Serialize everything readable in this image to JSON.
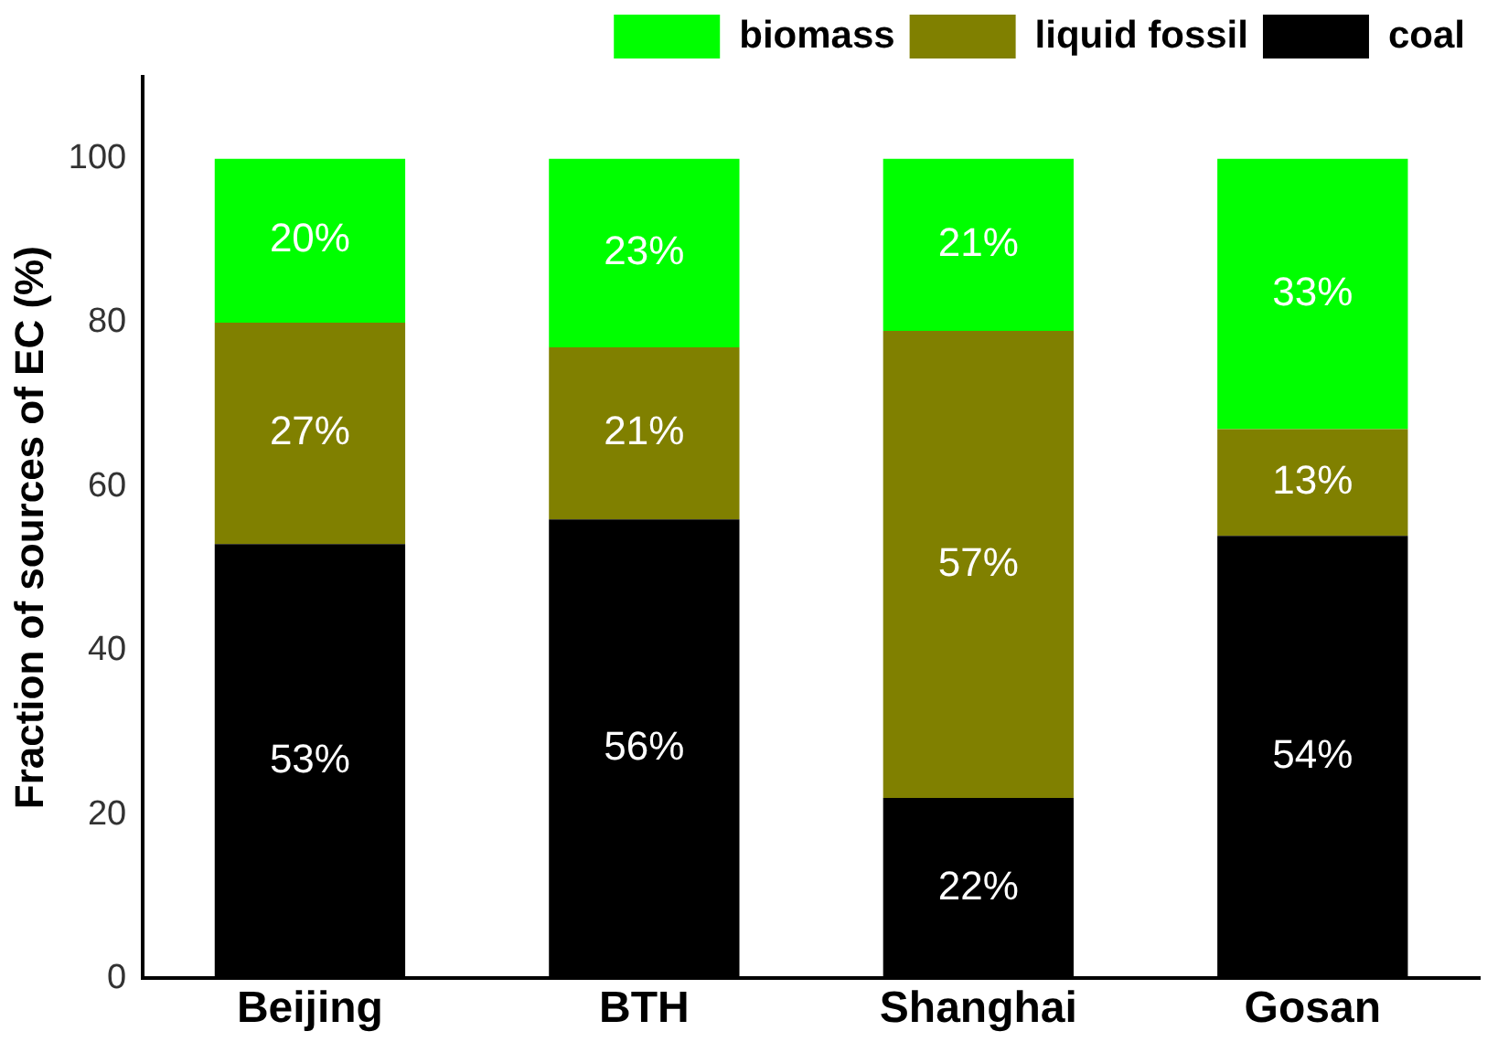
{
  "chart_data": {
    "type": "bar",
    "stacked": true,
    "ylabel": "Fraction of sources of EC (%)",
    "categories": [
      "Beijing",
      "BTH",
      "Shanghai",
      "Gosan"
    ],
    "series": [
      {
        "name": "coal",
        "color": "#000000",
        "values": [
          53,
          56,
          22,
          54
        ],
        "value_labels": [
          "53%",
          "56%",
          "22%",
          "54%"
        ]
      },
      {
        "name": "liquid fossil",
        "color": "#808000",
        "values": [
          27,
          21,
          57,
          13
        ],
        "value_labels": [
          "27%",
          "21%",
          "57%",
          "13%"
        ]
      },
      {
        "name": "biomass",
        "color": "#00ff00",
        "values": [
          20,
          23,
          21,
          33
        ],
        "value_labels": [
          "20%",
          "23%",
          "21%",
          "33%"
        ]
      }
    ],
    "ylim": [
      0,
      110
    ],
    "yticks": [
      0,
      20,
      40,
      60,
      80,
      100
    ],
    "grid": false,
    "legend": "top right"
  }
}
